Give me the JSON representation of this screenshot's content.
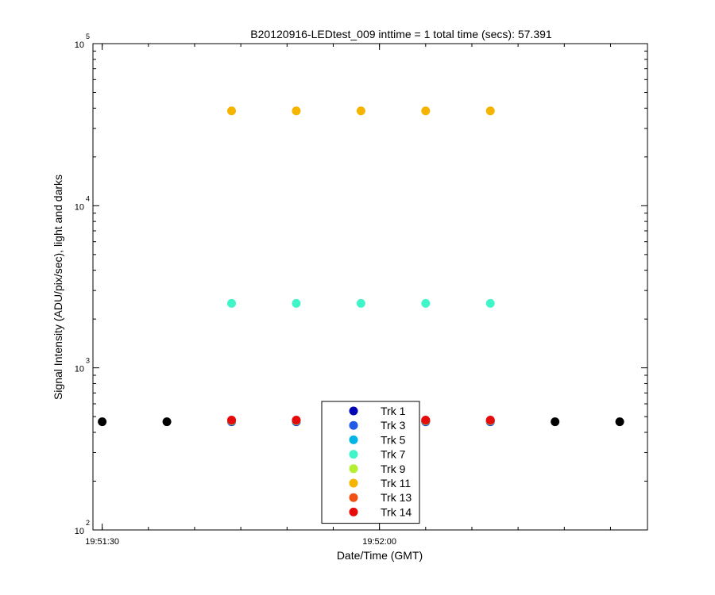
{
  "chart_data": {
    "type": "scatter",
    "title": "B20120916-LEDtest_009 inttime = 1 total time (secs): 57.391",
    "xlabel": "Date/Time (GMT)",
    "ylabel": "Signal Intensity (ADU/pix/sec), light and darks",
    "yscale": "log",
    "ylim": [
      100,
      100000
    ],
    "xlim": [
      "19:51:29",
      "19:52:29"
    ],
    "x_ticks": [
      "19:51:30",
      "19:52:00"
    ],
    "y_ticks": [
      {
        "base": "10",
        "exp": "2"
      },
      {
        "base": "10",
        "exp": "3"
      },
      {
        "base": "10",
        "exp": "4"
      },
      {
        "base": "10",
        "exp": "5"
      }
    ],
    "grid": false,
    "legend_position": "bottom-center",
    "series": [
      {
        "name": "Trk 1",
        "color": "#0000b4",
        "x": [
          "19:51:44",
          "19:51:51",
          "19:51:58",
          "19:52:05",
          "19:52:12"
        ],
        "y": [
          465,
          465,
          465,
          465,
          465
        ]
      },
      {
        "name": "Trk 3",
        "color": "#1f5be6",
        "x": [
          "19:51:44",
          "19:51:51",
          "19:51:58",
          "19:52:05",
          "19:52:12"
        ],
        "y": [
          467,
          467,
          467,
          467,
          467
        ]
      },
      {
        "name": "Trk 5",
        "color": "#00b4e6",
        "x": [
          "19:51:44",
          "19:51:51",
          "19:51:58",
          "19:52:05",
          "19:52:12"
        ],
        "y": [
          470,
          470,
          470,
          470,
          470
        ]
      },
      {
        "name": "Trk 7",
        "color": "#40f5c8",
        "x": [
          "19:51:44",
          "19:51:51",
          "19:51:58",
          "19:52:05",
          "19:52:12"
        ],
        "y": [
          2500,
          2500,
          2500,
          2500,
          2500
        ]
      },
      {
        "name": "Trk 9",
        "color": "#b4f032",
        "x": [
          "19:51:44",
          "19:51:51",
          "19:51:58",
          "19:52:05",
          "19:52:12"
        ],
        "y": [
          472,
          472,
          472,
          472,
          472
        ]
      },
      {
        "name": "Trk 11",
        "color": "#f5b400",
        "x": [
          "19:51:44",
          "19:51:51",
          "19:51:58",
          "19:52:05",
          "19:52:12"
        ],
        "y": [
          38500,
          38500,
          38500,
          38500,
          38500
        ]
      },
      {
        "name": "Trk 13",
        "color": "#f05014",
        "x": [
          "19:51:44",
          "19:51:51",
          "19:51:58",
          "19:52:05",
          "19:52:12"
        ],
        "y": [
          474,
          474,
          474,
          474,
          474
        ]
      },
      {
        "name": "Trk 14",
        "color": "#e60a0a",
        "x": [
          "19:51:44",
          "19:51:51",
          "19:51:58",
          "19:52:05",
          "19:52:12"
        ],
        "y": [
          476,
          476,
          476,
          476,
          476
        ]
      },
      {
        "color": "#000000",
        "x": [
          "19:51:30",
          "19:51:37",
          "19:52:19",
          "19:52:26"
        ],
        "y": [
          465,
          465,
          465,
          465
        ]
      }
    ]
  }
}
